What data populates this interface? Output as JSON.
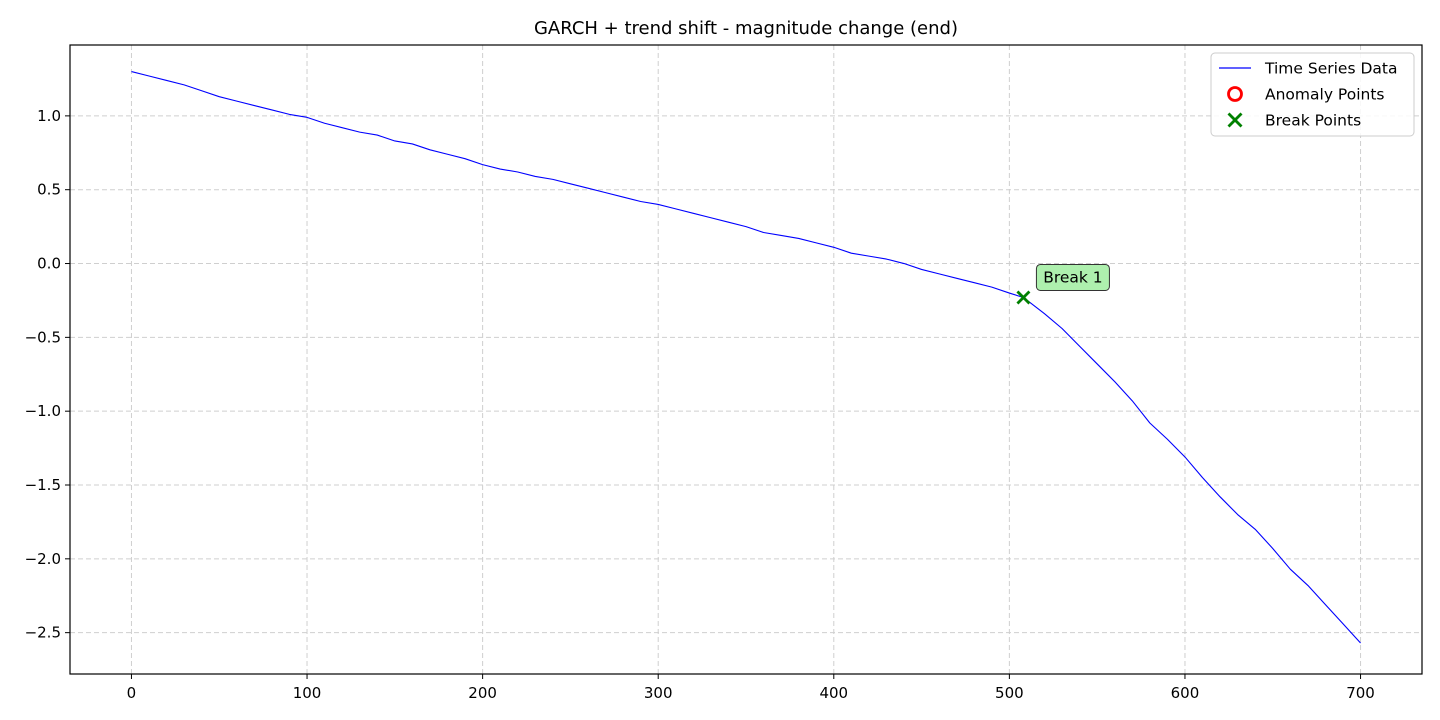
{
  "chart_data": {
    "type": "line",
    "title": "GARCH + trend shift - magnitude change (end)",
    "xlabel": "",
    "ylabel": "",
    "xlim": [
      -35,
      735
    ],
    "ylim": [
      -2.78,
      1.48
    ],
    "x_ticks": [
      0,
      100,
      200,
      300,
      400,
      500,
      600,
      700
    ],
    "x_tick_labels": [
      "0",
      "100",
      "200",
      "300",
      "400",
      "500",
      "600",
      "700"
    ],
    "y_ticks": [
      1.0,
      0.5,
      0.0,
      -0.5,
      -1.0,
      -1.5,
      -2.0,
      -2.5
    ],
    "y_tick_labels": [
      "1.0",
      "0.5",
      "0.0",
      "−0.5",
      "−1.0",
      "−1.5",
      "−2.0",
      "−2.5"
    ],
    "grid": true,
    "legend_position": "top-right",
    "legend": [
      {
        "label": "Time Series Data",
        "marker": "line",
        "color": "#0000ff"
      },
      {
        "label": "Anomaly Points",
        "marker": "circle",
        "color": "#ff0000"
      },
      {
        "label": "Break Points",
        "marker": "x",
        "color": "#008000"
      }
    ],
    "series": [
      {
        "name": "Time Series Data",
        "color": "#0000ff",
        "x": [
          0,
          10,
          20,
          30,
          40,
          50,
          60,
          70,
          80,
          90,
          100,
          110,
          120,
          130,
          140,
          150,
          160,
          170,
          180,
          190,
          200,
          210,
          220,
          230,
          240,
          250,
          260,
          270,
          280,
          290,
          300,
          310,
          320,
          330,
          340,
          350,
          360,
          370,
          380,
          390,
          400,
          410,
          420,
          430,
          440,
          450,
          460,
          470,
          480,
          490,
          500,
          508,
          520,
          530,
          540,
          550,
          560,
          570,
          580,
          590,
          600,
          610,
          620,
          630,
          640,
          650,
          660,
          670,
          680,
          690,
          700
        ],
        "y": [
          1.3,
          1.27,
          1.24,
          1.21,
          1.17,
          1.13,
          1.1,
          1.07,
          1.04,
          1.01,
          0.99,
          0.95,
          0.92,
          0.89,
          0.87,
          0.83,
          0.81,
          0.77,
          0.74,
          0.71,
          0.67,
          0.64,
          0.62,
          0.59,
          0.57,
          0.54,
          0.51,
          0.48,
          0.45,
          0.42,
          0.4,
          0.37,
          0.34,
          0.31,
          0.28,
          0.25,
          0.21,
          0.19,
          0.17,
          0.14,
          0.11,
          0.07,
          0.05,
          0.03,
          0.0,
          -0.04,
          -0.07,
          -0.1,
          -0.13,
          -0.16,
          -0.2,
          -0.23,
          -0.34,
          -0.44,
          -0.56,
          -0.68,
          -0.8,
          -0.93,
          -1.08,
          -1.19,
          -1.31,
          -1.45,
          -1.58,
          -1.7,
          -1.8,
          -1.93,
          -2.07,
          -2.18,
          -2.31,
          -2.44,
          -2.57
        ]
      }
    ],
    "anomaly_points": [],
    "break_points": [
      {
        "x": 508,
        "y": -0.23,
        "label": "Break 1"
      }
    ]
  }
}
